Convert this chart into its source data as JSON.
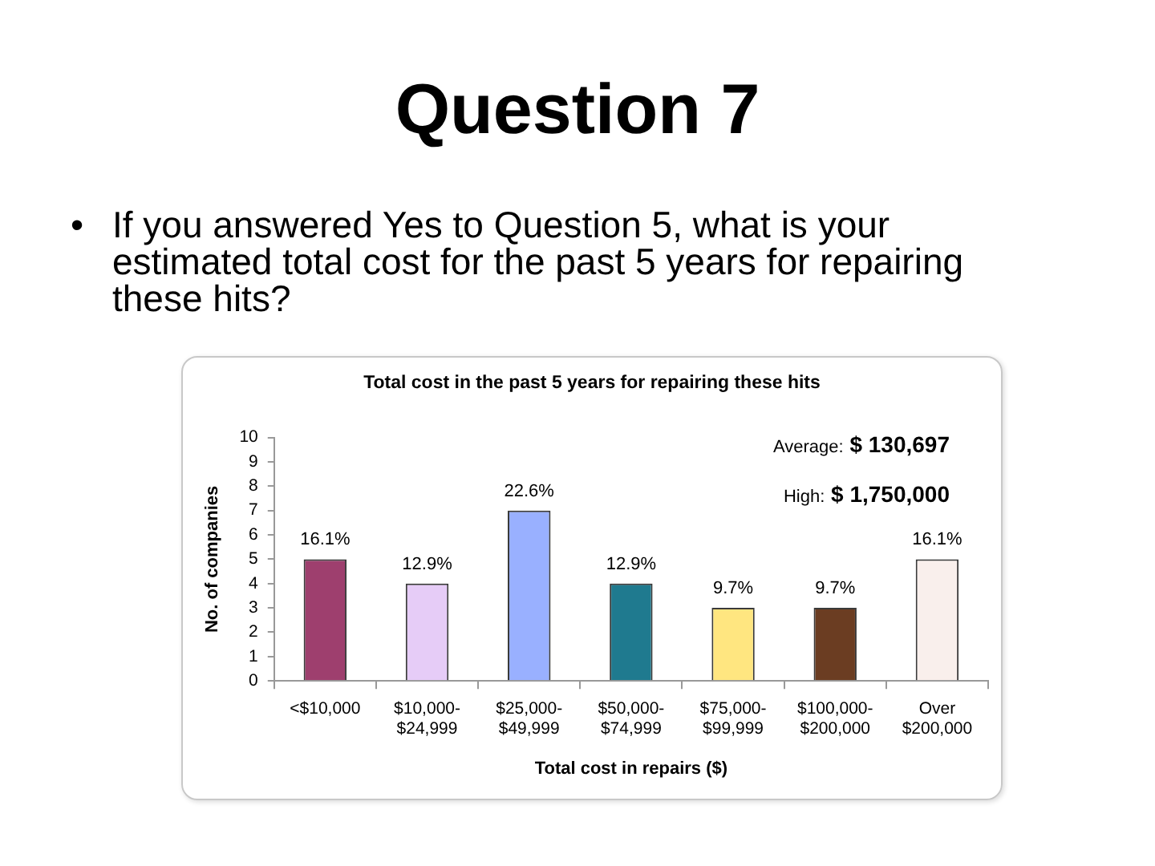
{
  "chart_data": {
    "type": "bar",
    "title": "Total cost in the past 5 years for repairing these hits",
    "xlabel": "Total cost in repairs ($)",
    "ylabel": "No. of companies",
    "categories": [
      "<$10,000",
      "$10,000-$24,999",
      "$25,000-$49,999",
      "$50,000-$74,999",
      "$75,000-$99,999",
      "$100,000-$200,000",
      "Over $200,000"
    ],
    "values": [
      5,
      4,
      7,
      4,
      3,
      3,
      5
    ],
    "colors": [
      "#9e3f6e",
      "#e6ccf7",
      "#99b0ff",
      "#1f7a8f",
      "#ffe680",
      "#6b3d22",
      "#f9efec"
    ],
    "ylim": [
      0,
      10
    ],
    "yticks": [
      0,
      1,
      2,
      3,
      4,
      5,
      6,
      7,
      8,
      9,
      10
    ],
    "annotations": [
      "Question 7",
      "• If you answered Yes to Question 5, what is your estimated total cost for the past 5 years for repairing these hits?",
      "Average: $ 130,697",
      "High: $ 1,750,000",
      {
        "text": "16.1%",
        "x": "<$10,000",
        "y": 5
      },
      {
        "text": "12.9%",
        "x": "$10,000-$24,999",
        "y": 4
      },
      {
        "text": "22.6%",
        "x": "$25,000-$49,999",
        "y": 7
      },
      {
        "text": "12.9%",
        "x": "$50,000-$74,999",
        "y": 4
      },
      {
        "text": "9.7%",
        "x": "$75,000-$99,999",
        "y": 3
      },
      {
        "text": "9.7%",
        "x": "$100,000-$200,000",
        "y": 3
      },
      {
        "text": "16.1%",
        "x": "Over $200,000",
        "y": 5
      }
    ]
  }
}
